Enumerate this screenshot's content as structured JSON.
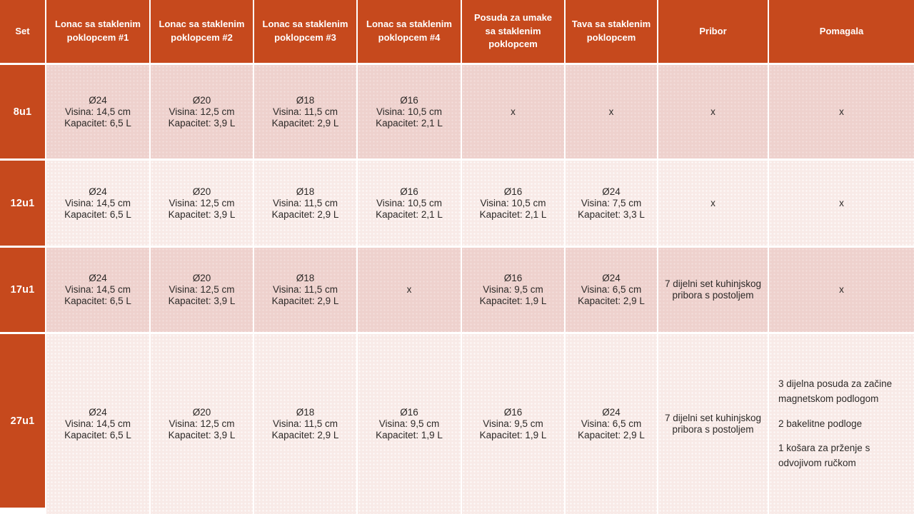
{
  "colors": {
    "accent_orange": "#c6491d",
    "row_tint_dark": "#eed1cd",
    "row_tint_light": "#f8eae7",
    "header_text": "#ffffff",
    "body_text": "#2d2a28"
  },
  "chart_data": {
    "type": "table",
    "columns": [
      "Set",
      "Lonac sa staklenim poklopcem #1",
      "Lonac sa staklenim poklopcem #2",
      "Lonac sa staklenim poklopcem #3",
      "Lonac sa staklenim poklopcem #4",
      "Posuda za umake sa staklenim poklopcem",
      "Tava sa staklenim poklopcem",
      "Pribor",
      "Pomagala"
    ],
    "rows": [
      {
        "set": "8u1",
        "cells": [
          {
            "lines": [
              "Ø24",
              "Visina: 14,5 cm",
              "Kapacitet: 6,5 L"
            ]
          },
          {
            "lines": [
              "Ø20",
              "Visina: 12,5 cm",
              "Kapacitet: 3,9 L"
            ]
          },
          {
            "lines": [
              "Ø18",
              "Visina: 11,5 cm",
              "Kapacitet: 2,9 L"
            ]
          },
          {
            "lines": [
              "Ø16",
              "Visina: 10,5 cm",
              "Kapacitet: 2,1 L"
            ]
          },
          {
            "lines": [
              "x"
            ]
          },
          {
            "lines": [
              "x"
            ]
          },
          {
            "lines": [
              "x"
            ]
          },
          {
            "lines": [
              "x"
            ]
          }
        ]
      },
      {
        "set": "12u1",
        "cells": [
          {
            "lines": [
              "Ø24",
              "Visina: 14,5 cm",
              "Kapacitet: 6,5 L"
            ]
          },
          {
            "lines": [
              "Ø20",
              "Visina: 12,5 cm",
              "Kapacitet: 3,9 L"
            ]
          },
          {
            "lines": [
              "Ø18",
              "Visina: 11,5 cm",
              "Kapacitet: 2,9 L"
            ]
          },
          {
            "lines": [
              "Ø16",
              "Visina: 10,5 cm",
              "Kapacitet: 2,1 L"
            ]
          },
          {
            "lines": [
              "Ø16",
              "Visina: 10,5 cm",
              "Kapacitet: 2,1 L"
            ]
          },
          {
            "lines": [
              "Ø24",
              "Visina: 7,5 cm",
              "Kapacitet: 3,3 L"
            ]
          },
          {
            "lines": [
              "x"
            ]
          },
          {
            "lines": [
              "x"
            ]
          }
        ]
      },
      {
        "set": "17u1",
        "cells": [
          {
            "lines": [
              "Ø24",
              "Visina: 14,5 cm",
              "Kapacitet: 6,5 L"
            ]
          },
          {
            "lines": [
              "Ø20",
              "Visina: 12,5 cm",
              "Kapacitet: 3,9 L"
            ]
          },
          {
            "lines": [
              "Ø18",
              "Visina: 11,5 cm",
              "Kapacitet: 2,9 L"
            ]
          },
          {
            "lines": [
              "x"
            ]
          },
          {
            "lines": [
              "Ø16",
              "Visina: 9,5 cm",
              "Kapacitet: 1,9 L"
            ]
          },
          {
            "lines": [
              "Ø24",
              "Visina: 6,5 cm",
              "Kapacitet: 2,9 L"
            ]
          },
          {
            "text": "7 dijelni set kuhinjskog pribora s postoljem"
          },
          {
            "lines": [
              "x"
            ]
          }
        ]
      },
      {
        "set": "27u1",
        "cells": [
          {
            "lines": [
              "Ø24",
              "Visina: 14,5 cm",
              "Kapacitet: 6,5 L"
            ]
          },
          {
            "lines": [
              "Ø20",
              "Visina: 12,5 cm",
              "Kapacitet: 3,9 L"
            ]
          },
          {
            "lines": [
              "Ø18",
              "Visina: 11,5 cm",
              "Kapacitet: 2,9 L"
            ]
          },
          {
            "lines": [
              "Ø16",
              "Visina: 9,5 cm",
              "Kapacitet: 1,9 L"
            ]
          },
          {
            "lines": [
              "Ø16",
              "Visina: 9,5 cm",
              "Kapacitet: 1,9 L"
            ]
          },
          {
            "lines": [
              "Ø24",
              "Visina: 6,5 cm",
              "Kapacitet: 2,9 L"
            ]
          },
          {
            "text": "7 dijelni set kuhinjskog pribora s postoljem"
          },
          {
            "paragraphs": [
              "3 dijelna posuda za začine magnetskom podlogom",
              "2 bakelitne podloge",
              "1 košara za prženje s odvojivom ručkom"
            ]
          }
        ]
      }
    ]
  }
}
